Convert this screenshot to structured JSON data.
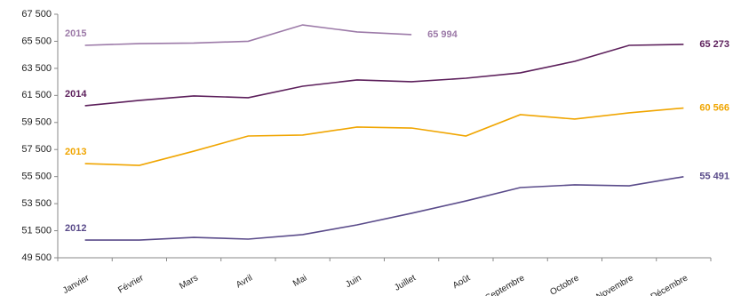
{
  "chart_data": {
    "type": "line",
    "categories": [
      "Janvier",
      "Février",
      "Mars",
      "Avril",
      "Mai",
      "Juin",
      "Juillet",
      "Août",
      "Septembre",
      "Octobre",
      "Novembre",
      "Décembre"
    ],
    "ylim": [
      49500,
      67500
    ],
    "yticks": [
      {
        "value": 49500,
        "label": "49 500"
      },
      {
        "value": 51500,
        "label": "51 500"
      },
      {
        "value": 53500,
        "label": "53 500"
      },
      {
        "value": 55500,
        "label": "55 500"
      },
      {
        "value": 57500,
        "label": "57 500"
      },
      {
        "value": 59500,
        "label": "59 500"
      },
      {
        "value": 61500,
        "label": "61 500"
      },
      {
        "value": 63500,
        "label": "63 500"
      },
      {
        "value": 65500,
        "label": "65 500"
      },
      {
        "value": 67500,
        "label": "67 500"
      }
    ],
    "grid": false,
    "series": [
      {
        "name": "2015",
        "color": "#9c7aa8",
        "values": [
          65200,
          65330,
          65370,
          65500,
          66710,
          66190,
          65994,
          null,
          null,
          null,
          null,
          null
        ],
        "value_labels": [
          null,
          null,
          null,
          null,
          null,
          null,
          "65 994",
          null,
          null,
          null,
          null,
          null
        ]
      },
      {
        "name": "2014",
        "color": "#5c1f5b",
        "values": [
          60735,
          61130,
          61460,
          61330,
          62180,
          62640,
          62510,
          62770,
          63170,
          64020,
          65200,
          65273
        ],
        "value_labels": [
          null,
          null,
          null,
          null,
          null,
          null,
          null,
          null,
          null,
          null,
          null,
          "65 273"
        ]
      },
      {
        "name": "2013",
        "color": "#f0a500",
        "values": [
          56460,
          56330,
          57380,
          58500,
          58570,
          59160,
          59090,
          58500,
          60080,
          59750,
          60210,
          60566
        ],
        "value_labels": [
          null,
          null,
          null,
          null,
          null,
          null,
          null,
          null,
          null,
          null,
          null,
          "60 566"
        ]
      },
      {
        "name": "2012",
        "color": "#5a4b8a",
        "values": [
          50810,
          50810,
          51010,
          50880,
          51210,
          51930,
          52790,
          53700,
          54690,
          54890,
          54820,
          55491
        ],
        "value_labels": [
          null,
          null,
          null,
          null,
          null,
          null,
          null,
          null,
          null,
          null,
          null,
          "55 491"
        ]
      }
    ]
  }
}
